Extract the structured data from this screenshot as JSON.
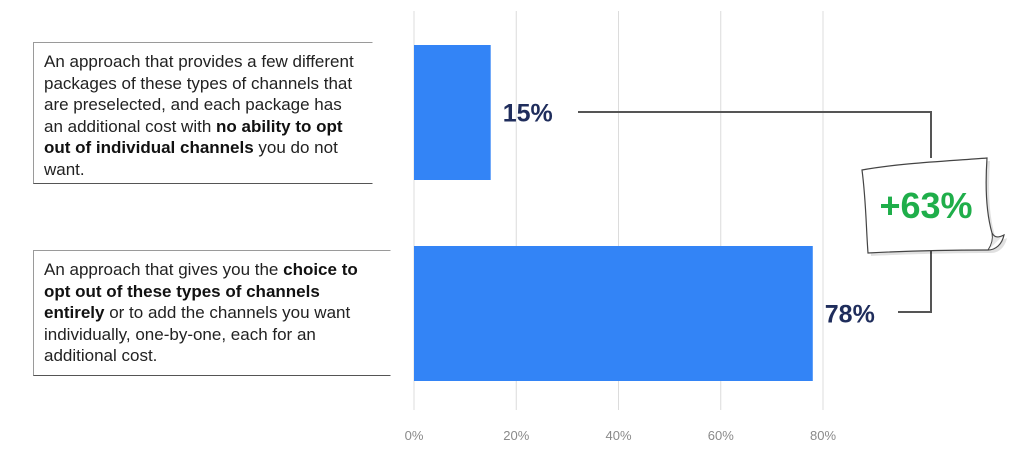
{
  "chart_data": {
    "type": "bar",
    "orientation": "horizontal",
    "categories": [
      {
        "pre": "An approach that provides a few different packages of these types of channels that are preselected, and each package has an additional cost with ",
        "bold": "no ability to opt out of individual channels",
        "post": " you do not want."
      },
      {
        "pre": "An approach that gives you the ",
        "bold": "choice to opt out of these types of channels entirely",
        "post": " or to add the channels you want individually, one-by-one, each for an additional cost."
      }
    ],
    "values": [
      15,
      78
    ],
    "value_labels": [
      "15%",
      "78%"
    ],
    "xlim": [
      0,
      80
    ],
    "ticks": [
      0,
      20,
      40,
      60,
      80
    ],
    "tick_labels": [
      "0%",
      "20%",
      "40%",
      "60%",
      "80%"
    ],
    "grid": true,
    "bar_color": "#3384f6",
    "annotation": {
      "text": "+63%",
      "color": "#1fae4a"
    }
  }
}
